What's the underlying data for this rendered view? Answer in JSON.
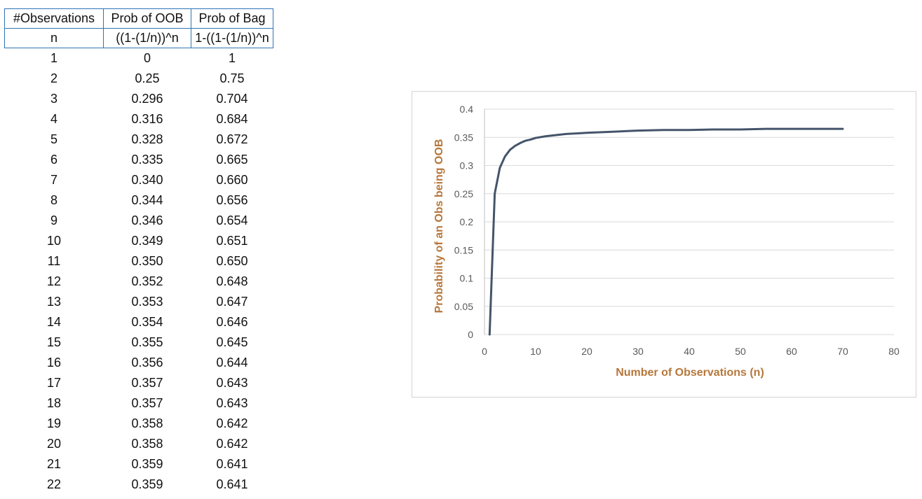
{
  "table": {
    "headers": [
      "#Observations",
      "Prob of OOB",
      "Prob of Bag"
    ],
    "formulas": [
      "n",
      "((1-(1/n))^n",
      "1-((1-(1/n))^n"
    ],
    "rows": [
      [
        "1",
        "0",
        "1"
      ],
      [
        "2",
        "0.25",
        "0.75"
      ],
      [
        "3",
        "0.296",
        "0.704"
      ],
      [
        "4",
        "0.316",
        "0.684"
      ],
      [
        "5",
        "0.328",
        "0.672"
      ],
      [
        "6",
        "0.335",
        "0.665"
      ],
      [
        "7",
        "0.340",
        "0.660"
      ],
      [
        "8",
        "0.344",
        "0.656"
      ],
      [
        "9",
        "0.346",
        "0.654"
      ],
      [
        "10",
        "0.349",
        "0.651"
      ],
      [
        "11",
        "0.350",
        "0.650"
      ],
      [
        "12",
        "0.352",
        "0.648"
      ],
      [
        "13",
        "0.353",
        "0.647"
      ],
      [
        "14",
        "0.354",
        "0.646"
      ],
      [
        "15",
        "0.355",
        "0.645"
      ],
      [
        "16",
        "0.356",
        "0.644"
      ],
      [
        "17",
        "0.357",
        "0.643"
      ],
      [
        "18",
        "0.357",
        "0.643"
      ],
      [
        "19",
        "0.358",
        "0.642"
      ],
      [
        "20",
        "0.358",
        "0.642"
      ],
      [
        "21",
        "0.359",
        "0.641"
      ],
      [
        "22",
        "0.359",
        "0.641"
      ]
    ]
  },
  "chart_data": {
    "type": "line",
    "title": "",
    "xlabel": "Number of Observations (n)",
    "ylabel": "Probability of an Obs being OOB",
    "xlim": [
      0,
      80
    ],
    "ylim": [
      0,
      0.4
    ],
    "xticks": [
      "0",
      "10",
      "20",
      "30",
      "40",
      "50",
      "60",
      "70",
      "80"
    ],
    "yticks": [
      "0",
      "0.05",
      "0.1",
      "0.15",
      "0.2",
      "0.25",
      "0.3",
      "0.35",
      "0.4"
    ],
    "grid": "horizontal",
    "legend": "none",
    "series": [
      {
        "color": "#44546a",
        "x": [
          1,
          2,
          3,
          4,
          5,
          6,
          7,
          8,
          9,
          10,
          12,
          14,
          16,
          18,
          20,
          25,
          30,
          35,
          40,
          45,
          50,
          55,
          60,
          65,
          70
        ],
        "y": [
          0,
          0.25,
          0.296,
          0.316,
          0.328,
          0.335,
          0.34,
          0.344,
          0.346,
          0.349,
          0.352,
          0.354,
          0.356,
          0.357,
          0.358,
          0.36,
          0.362,
          0.363,
          0.363,
          0.364,
          0.364,
          0.365,
          0.365,
          0.365,
          0.365
        ]
      }
    ]
  },
  "colors": {
    "table_border": "#2e75b6",
    "axis_title": "#b6773c",
    "line": "#44546a",
    "gridline": "#d9d9d9"
  }
}
